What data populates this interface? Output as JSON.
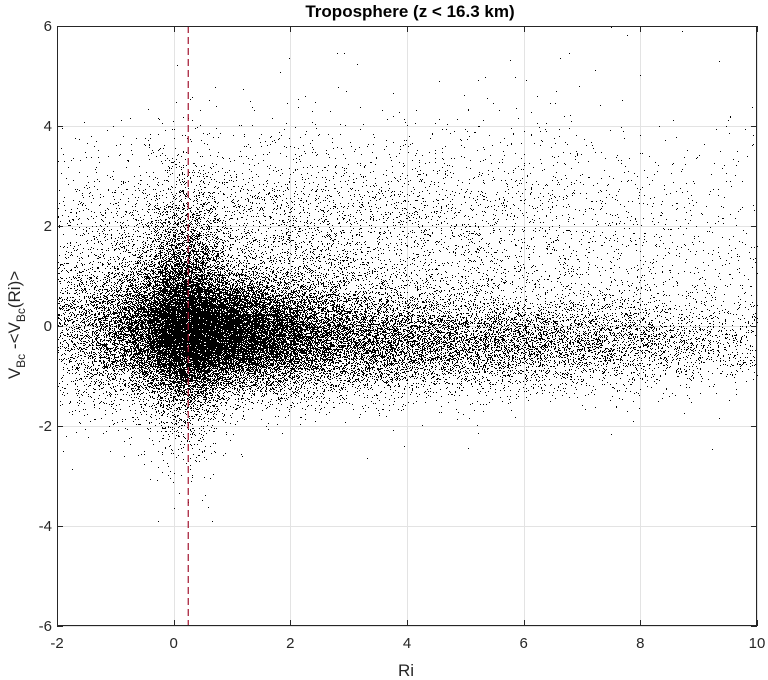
{
  "chart_data": {
    "type": "scatter",
    "title": "Troposphere (z < 16.3 km)",
    "xlabel": "Ri",
    "ylabel": {
      "main1": "V",
      "sub1": "Bc",
      "main2": " -<V",
      "sub2": "Bc",
      "main3": "(Ri)>"
    },
    "xlim": [
      -2,
      10
    ],
    "ylim": [
      -6,
      6
    ],
    "xticks": [
      -2,
      0,
      2,
      4,
      6,
      8,
      10
    ],
    "yticks": [
      -6,
      -4,
      -2,
      0,
      2,
      4,
      6
    ],
    "xtick_labels": [
      "-2",
      "0",
      "2",
      "4",
      "6",
      "8",
      "10"
    ],
    "ytick_labels": [
      "-6",
      "-4",
      "-2",
      "0",
      "2",
      "4",
      "6"
    ],
    "grid": true,
    "marker_color": "#000000",
    "reference_line": {
      "x": 0.25,
      "color": "#a2142f",
      "style": "dashed"
    },
    "series": [
      {
        "density_regions": [
          {
            "x_center": 0.6,
            "x_spread": 0.9,
            "y_center": -0.1,
            "y_spread": 0.55,
            "weight": 0.34
          },
          {
            "x_center": 0.2,
            "x_spread": 0.35,
            "y_center": 0.2,
            "y_spread": 1.1,
            "weight": 0.14
          },
          {
            "x_center": 2.0,
            "x_spread": 1.6,
            "y_center": -0.2,
            "y_spread": 0.6,
            "weight": 0.18
          },
          {
            "x_center": 5.5,
            "x_spread": 2.6,
            "y_center": -0.3,
            "y_spread": 0.45,
            "weight": 0.16
          },
          {
            "x_center": 1.5,
            "x_spread": 2.5,
            "y_center": 1.8,
            "y_spread": 1.0,
            "weight": 0.08
          },
          {
            "x_center": -1.0,
            "x_spread": 0.8,
            "y_center": 0.0,
            "y_spread": 0.9,
            "weight": 0.05
          },
          {
            "x_center": 6.0,
            "x_spread": 3.0,
            "y_center": 1.5,
            "y_spread": 1.3,
            "weight": 0.05
          }
        ],
        "point_count": 52000
      }
    ]
  }
}
